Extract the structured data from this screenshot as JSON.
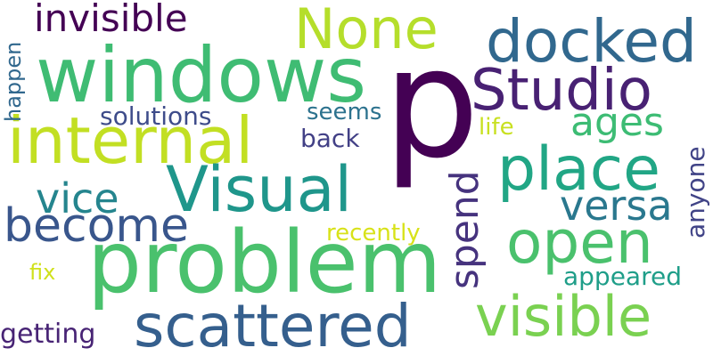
{
  "word_cloud": {
    "words": [
      {
        "id": "p",
        "text": "p",
        "color": "#440154"
      },
      {
        "id": "windows",
        "text": "windows",
        "color": "#3fbc73"
      },
      {
        "id": "problem",
        "text": "problem",
        "color": "#4ac16d"
      },
      {
        "id": "internal",
        "text": "internal",
        "color": "#c2df23"
      },
      {
        "id": "scattered",
        "text": "scattered",
        "color": "#355f8d"
      },
      {
        "id": "docked",
        "text": "docked",
        "color": "#31688e"
      },
      {
        "id": "studio",
        "text": "Studio",
        "color": "#482173"
      },
      {
        "id": "visual",
        "text": "Visual",
        "color": "#1f968b"
      },
      {
        "id": "none",
        "text": "None",
        "color": "#b5de2b"
      },
      {
        "id": "place",
        "text": "place",
        "color": "#21a685"
      },
      {
        "id": "open",
        "text": "open",
        "color": "#4ac16d"
      },
      {
        "id": "visible",
        "text": "visible",
        "color": "#7ad151"
      },
      {
        "id": "become",
        "text": "become",
        "color": "#39568c"
      },
      {
        "id": "invisible",
        "text": "invisible",
        "color": "#440154"
      },
      {
        "id": "versa",
        "text": "versa",
        "color": "#2a788e"
      },
      {
        "id": "vice",
        "text": "vice",
        "color": "#25858e"
      },
      {
        "id": "ages",
        "text": "ages",
        "color": "#3dbc74"
      },
      {
        "id": "spend",
        "text": "spend",
        "color": "#46337e"
      },
      {
        "id": "solutions",
        "text": "solutions",
        "color": "#3e4c8a"
      },
      {
        "id": "getting",
        "text": "getting",
        "color": "#482475"
      },
      {
        "id": "back",
        "text": "back",
        "color": "#424086"
      },
      {
        "id": "seems",
        "text": "seems",
        "color": "#2c728e"
      },
      {
        "id": "appeared",
        "text": "appeared",
        "color": "#1f9e89"
      },
      {
        "id": "recently",
        "text": "recently",
        "color": "#d8e219"
      },
      {
        "id": "anyone",
        "text": "anyone",
        "color": "#414487"
      },
      {
        "id": "happen",
        "text": "happen",
        "color": "#31688e"
      },
      {
        "id": "life",
        "text": "life",
        "color": "#c8e020"
      },
      {
        "id": "fix",
        "text": "fix",
        "color": "#d0e11c"
      }
    ]
  }
}
